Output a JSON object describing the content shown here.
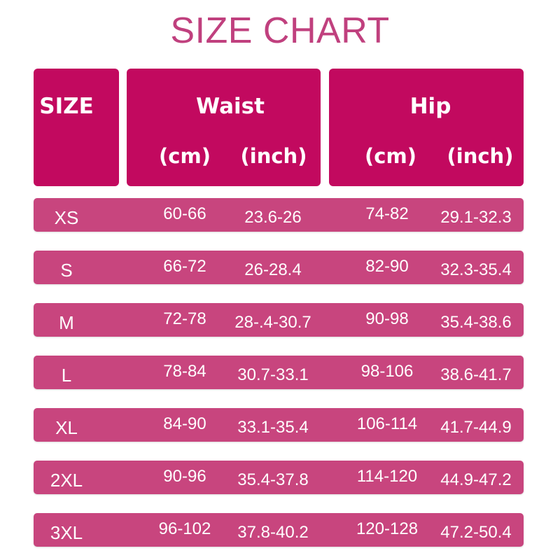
{
  "title": "SIZE CHART",
  "colors": {
    "title": "#c0407e",
    "header": "#c2095f",
    "row": "#c8457e",
    "text": "#ffffff"
  },
  "header": {
    "size": "SIZE",
    "waist": "Waist",
    "hip": "Hip",
    "waist_cm": "(cm)",
    "waist_inch": "(inch)",
    "hip_cm": "(cm)",
    "hip_inch": "(inch)"
  },
  "rows": [
    {
      "size": "XS",
      "waist_cm": "60-66",
      "waist_inch": "23.6-26",
      "hip_cm": "74-82",
      "hip_inch": "29.1-32.3"
    },
    {
      "size": "S",
      "waist_cm": "66-72",
      "waist_inch": "26-28.4",
      "hip_cm": "82-90",
      "hip_inch": "32.3-35.4"
    },
    {
      "size": "M",
      "waist_cm": "72-78",
      "waist_inch": "28-.4-30.7",
      "hip_cm": "90-98",
      "hip_inch": "35.4-38.6"
    },
    {
      "size": "L",
      "waist_cm": "78-84",
      "waist_inch": "30.7-33.1",
      "hip_cm": "98-106",
      "hip_inch": "38.6-41.7"
    },
    {
      "size": "XL",
      "waist_cm": "84-90",
      "waist_inch": "33.1-35.4",
      "hip_cm": "106-114",
      "hip_inch": "41.7-44.9"
    },
    {
      "size": "2XL",
      "waist_cm": "90-96",
      "waist_inch": "35.4-37.8",
      "hip_cm": "114-120",
      "hip_inch": "44.9-47.2"
    },
    {
      "size": "3XL",
      "waist_cm": "96-102",
      "waist_inch": "37.8-40.2",
      "hip_cm": "120-128",
      "hip_inch": "47.2-50.4"
    }
  ]
}
